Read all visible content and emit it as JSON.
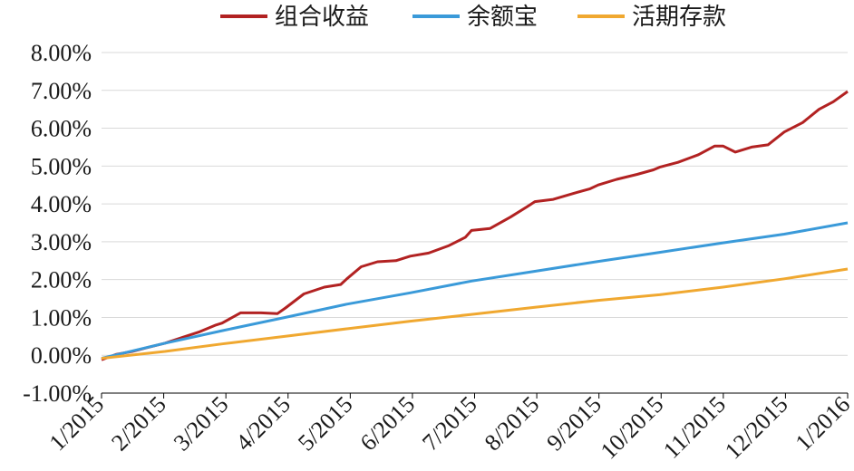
{
  "chart_data": {
    "type": "line",
    "title": "",
    "xlabel": "",
    "ylabel": "",
    "ylim": [
      -0.01,
      0.08
    ],
    "x_range": [
      "2015-01-01",
      "2016-01-01"
    ],
    "yticks": [
      "8.00%",
      "7.00%",
      "6.00%",
      "5.00%",
      "4.00%",
      "3.00%",
      "2.00%",
      "1.00%",
      "0.00%",
      "-1.00%"
    ],
    "xticks": [
      "1/2015",
      "2/2015",
      "3/2015",
      "4/2015",
      "5/2015",
      "6/2015",
      "7/2015",
      "8/2015",
      "9/2015",
      "10/2015",
      "11/2015",
      "12/2015",
      "1/2016"
    ],
    "grid": "horizontal",
    "legend_position": "top",
    "series": [
      {
        "name": "组合收益",
        "color": "#b22222",
        "points": [
          [
            "2015-01-01",
            -0.0012
          ],
          [
            "2015-01-08",
            0.0002
          ],
          [
            "2015-01-16",
            0.001
          ],
          [
            "2015-01-23",
            0.002
          ],
          [
            "2015-02-01",
            0.0032
          ],
          [
            "2015-02-10",
            0.0048
          ],
          [
            "2015-02-18",
            0.0062
          ],
          [
            "2015-02-26",
            0.008
          ],
          [
            "2015-03-01",
            0.0085
          ],
          [
            "2015-03-10",
            0.0112
          ],
          [
            "2015-03-20",
            0.0112
          ],
          [
            "2015-03-28",
            0.011
          ],
          [
            "2015-04-01",
            0.0125
          ],
          [
            "2015-04-10",
            0.0162
          ],
          [
            "2015-04-20",
            0.018
          ],
          [
            "2015-04-28",
            0.0187
          ],
          [
            "2015-05-01",
            0.0202
          ],
          [
            "2015-05-08",
            0.0234
          ],
          [
            "2015-05-16",
            0.0247
          ],
          [
            "2015-05-25",
            0.025
          ],
          [
            "2015-06-01",
            0.0262
          ],
          [
            "2015-06-10",
            0.027
          ],
          [
            "2015-06-20",
            0.029
          ],
          [
            "2015-06-28",
            0.0312
          ],
          [
            "2015-07-01",
            0.033
          ],
          [
            "2015-07-10",
            0.0335
          ],
          [
            "2015-07-20",
            0.0365
          ],
          [
            "2015-07-28",
            0.0392
          ],
          [
            "2015-08-01",
            0.0406
          ],
          [
            "2015-08-10",
            0.0412
          ],
          [
            "2015-08-20",
            0.0428
          ],
          [
            "2015-08-28",
            0.044
          ],
          [
            "2015-09-01",
            0.045
          ],
          [
            "2015-09-10",
            0.0465
          ],
          [
            "2015-09-20",
            0.0478
          ],
          [
            "2015-09-28",
            0.049
          ],
          [
            "2015-10-01",
            0.0497
          ],
          [
            "2015-10-10",
            0.051
          ],
          [
            "2015-10-20",
            0.053
          ],
          [
            "2015-10-28",
            0.0553
          ],
          [
            "2015-11-01",
            0.0553
          ],
          [
            "2015-11-07",
            0.0537
          ],
          [
            "2015-11-15",
            0.055
          ],
          [
            "2015-11-23",
            0.0556
          ],
          [
            "2015-12-01",
            0.059
          ],
          [
            "2015-12-10",
            0.0615
          ],
          [
            "2015-12-18",
            0.065
          ],
          [
            "2015-12-25",
            0.067
          ],
          [
            "2016-01-01",
            0.0697
          ]
        ]
      },
      {
        "name": "余额宝",
        "color": "#3a9ad9",
        "points": [
          [
            "2015-01-01",
            -0.0008
          ],
          [
            "2015-02-01",
            0.0032
          ],
          [
            "2015-03-01",
            0.0065
          ],
          [
            "2015-04-01",
            0.01
          ],
          [
            "2015-05-01",
            0.0135
          ],
          [
            "2015-06-01",
            0.0165
          ],
          [
            "2015-07-01",
            0.0196
          ],
          [
            "2015-08-01",
            0.0222
          ],
          [
            "2015-09-01",
            0.0248
          ],
          [
            "2015-10-01",
            0.0272
          ],
          [
            "2015-11-01",
            0.0297
          ],
          [
            "2015-12-01",
            0.032
          ],
          [
            "2016-01-01",
            0.035
          ]
        ]
      },
      {
        "name": "活期存款",
        "color": "#f0a830",
        "points": [
          [
            "2015-01-01",
            -0.0008
          ],
          [
            "2015-02-01",
            0.001
          ],
          [
            "2015-03-01",
            0.003
          ],
          [
            "2015-04-01",
            0.005
          ],
          [
            "2015-05-01",
            0.007
          ],
          [
            "2015-06-01",
            0.009
          ],
          [
            "2015-07-01",
            0.0108
          ],
          [
            "2015-08-01",
            0.0127
          ],
          [
            "2015-09-01",
            0.0145
          ],
          [
            "2015-10-01",
            0.016
          ],
          [
            "2015-11-01",
            0.018
          ],
          [
            "2015-12-01",
            0.0202
          ],
          [
            "2016-01-01",
            0.0228
          ]
        ]
      }
    ]
  }
}
